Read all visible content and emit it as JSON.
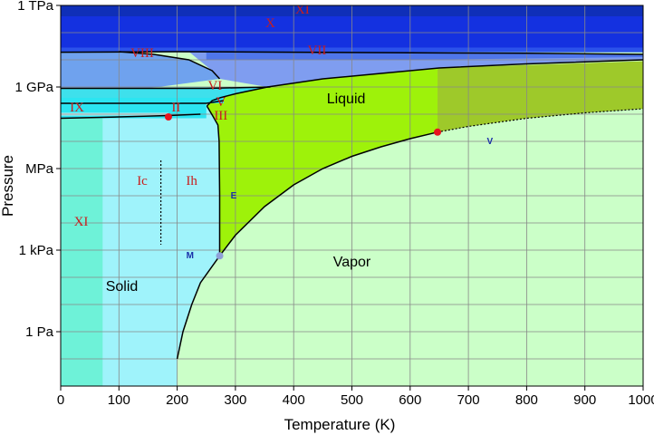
{
  "chart_data": {
    "type": "area",
    "title": "",
    "xlabel": "Temperature (K)",
    "ylabel": "Pressure",
    "xlim": [
      0,
      1000
    ],
    "ylim_log10_Pa": [
      -2,
      12
    ],
    "x_ticks": [
      0,
      100,
      200,
      300,
      400,
      500,
      600,
      700,
      800,
      900,
      1000
    ],
    "y_ticks": [
      {
        "label": "1 TPa",
        "log10": 12
      },
      {
        "label": "1 GPa",
        "log10": 9
      },
      {
        "label": "MPa",
        "log10": 6
      },
      {
        "label": "1 kPa",
        "log10": 3
      },
      {
        "label": "1 Pa",
        "log10": 0
      }
    ],
    "grid": true,
    "phase_labels": [
      {
        "text": "Liquid",
        "x": 490,
        "log10": 8.4,
        "style": "phase"
      },
      {
        "text": "Vapor",
        "x": 500,
        "log10": 2.4,
        "style": "phase"
      },
      {
        "text": "Solid",
        "x": 105,
        "log10": 1.5,
        "style": "phase"
      },
      {
        "text": "XI",
        "x": 415,
        "log10": 11.7,
        "style": "roman"
      },
      {
        "text": "X",
        "x": 360,
        "log10": 11.2,
        "style": "roman"
      },
      {
        "text": "VII",
        "x": 440,
        "log10": 10.2,
        "style": "roman"
      },
      {
        "text": "VIII",
        "x": 140,
        "log10": 10.1,
        "style": "roman"
      },
      {
        "text": "IX",
        "x": 28,
        "log10": 8.1,
        "style": "roman"
      },
      {
        "text": "II",
        "x": 198,
        "log10": 8.1,
        "style": "roman"
      },
      {
        "text": "III",
        "x": 275,
        "log10": 7.8,
        "style": "roman"
      },
      {
        "text": "V",
        "x": 275,
        "log10": 8.3,
        "style": "roman"
      },
      {
        "text": "VI",
        "x": 265,
        "log10": 8.9,
        "style": "roman"
      },
      {
        "text": "Ic",
        "x": 140,
        "log10": 5.4,
        "style": "roman"
      },
      {
        "text": "Ih",
        "x": 225,
        "log10": 5.4,
        "style": "roman"
      },
      {
        "text": "XI",
        "x": 35,
        "log10": 3.9,
        "style": "roman"
      }
    ],
    "point_markers": [
      {
        "text": "E",
        "x": 297,
        "log10": 4.9
      },
      {
        "text": "M",
        "x": 222,
        "log10": 2.7
      },
      {
        "text": "V",
        "x": 737,
        "log10": 6.9
      }
    ],
    "special_points": [
      {
        "name": "critical point",
        "x": 647,
        "log10": 7.34,
        "color": "#e8141e"
      },
      {
        "name": "triple point",
        "x": 273,
        "log10": 2.79,
        "color": "#8fa0d8"
      },
      {
        "name": "ice IX point",
        "x": 185,
        "log10": 7.9,
        "color": "#e8141e"
      }
    ],
    "phase_boundaries": {
      "sublimation": [
        [
          200,
          -1
        ],
        [
          210,
          0
        ],
        [
          225,
          1
        ],
        [
          240,
          1.8
        ],
        [
          273,
          2.79
        ]
      ],
      "vaporization": [
        [
          273,
          2.79
        ],
        [
          300,
          3.55
        ],
        [
          350,
          4.6
        ],
        [
          400,
          5.4
        ],
        [
          450,
          6.0
        ],
        [
          500,
          6.45
        ],
        [
          550,
          6.8
        ],
        [
          600,
          7.1
        ],
        [
          647,
          7.34
        ]
      ],
      "supercritical_extension": [
        [
          647,
          7.34
        ],
        [
          700,
          7.55
        ],
        [
          800,
          7.85
        ],
        [
          900,
          8.05
        ],
        [
          1000,
          8.2
        ]
      ],
      "melting_Ih": [
        [
          273,
          2.79
        ],
        [
          273,
          5
        ],
        [
          272,
          7
        ],
        [
          270,
          7.6
        ],
        [
          262,
          7.9
        ],
        [
          251,
          8.3
        ]
      ],
      "melting_high": [
        [
          251,
          8.3
        ],
        [
          260,
          8.5
        ],
        [
          273,
          8.6
        ],
        [
          300,
          8.75
        ],
        [
          355,
          9.0
        ],
        [
          450,
          9.3
        ],
        [
          550,
          9.5
        ],
        [
          650,
          9.7
        ],
        [
          800,
          9.85
        ],
        [
          1000,
          10.0
        ]
      ],
      "VII_VIII": [
        [
          100,
          10.3
        ],
        [
          160,
          10.2
        ],
        [
          220,
          10.0
        ],
        [
          260,
          9.6
        ],
        [
          273,
          9.3
        ]
      ],
      "XI_XII_boundary": [
        [
          0,
          10.28
        ],
        [
          200,
          10.3
        ],
        [
          400,
          10.28
        ],
        [
          600,
          10.26
        ],
        [
          800,
          10.24
        ],
        [
          1000,
          10.2
        ]
      ],
      "ice_II_IX_boundary": [
        [
          0,
          7.85
        ],
        [
          100,
          7.9
        ],
        [
          185,
          7.95
        ],
        [
          240,
          8.0
        ]
      ],
      "ice_VI_boundary": [
        [
          0,
          8.95
        ],
        [
          150,
          8.95
        ],
        [
          250,
          8.95
        ],
        [
          360,
          9.0
        ]
      ],
      "ice_VIII_lower": [
        [
          0,
          8.4
        ],
        [
          150,
          8.4
        ],
        [
          250,
          8.4
        ],
        [
          280,
          8.5
        ]
      ]
    },
    "colors": {
      "liquid": "#9ef20a",
      "supercritical": "#9ec92a",
      "vapor": "#cbffc8",
      "ice_Ih": "#9ff3fb",
      "ice_XI_low": "#6ef2d8",
      "ice_high_cyan": "#2be5f1",
      "ice_VII": "#6fa2ee",
      "ice_VII_dark": "#2856e6",
      "ice_X": "#1431e0",
      "ice_XI_top": "#0f2fb8",
      "grid": "#888888",
      "boundary": "#000000"
    }
  }
}
